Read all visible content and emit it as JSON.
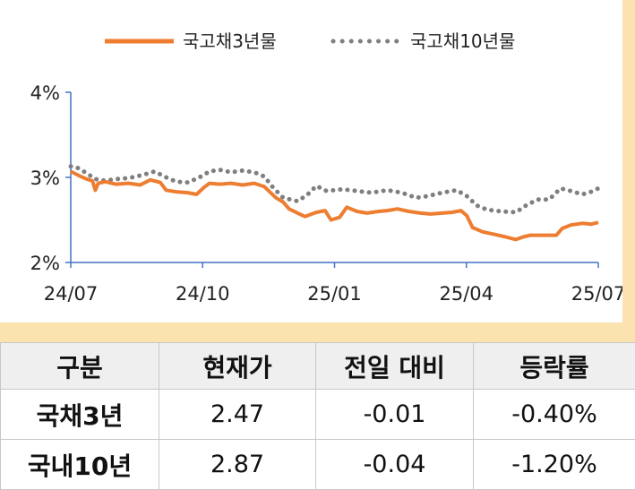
{
  "chart_data": {
    "type": "line",
    "legend": [
      "국고채3년물",
      "국고채10년물"
    ],
    "legend_position": "top",
    "x_ticks": [
      "24/07",
      "24/10",
      "25/01",
      "25/04",
      "25/07"
    ],
    "y_ticks": [
      "2%",
      "3%",
      "4%"
    ],
    "ylim": [
      2,
      4
    ],
    "x_range": [
      "2024-07-01",
      "2025-07-01"
    ],
    "series": [
      {
        "name": "국고채3년물",
        "color": "#ed7d31",
        "style": "solid",
        "points": [
          [
            "2024-07-01",
            3.07
          ],
          [
            "2024-07-08",
            3.01
          ],
          [
            "2024-07-12",
            2.98
          ],
          [
            "2024-07-16",
            2.96
          ],
          [
            "2024-07-18",
            2.85
          ],
          [
            "2024-07-20",
            2.93
          ],
          [
            "2024-07-25",
            2.95
          ],
          [
            "2024-08-01",
            2.92
          ],
          [
            "2024-08-10",
            2.93
          ],
          [
            "2024-08-18",
            2.91
          ],
          [
            "2024-08-25",
            2.97
          ],
          [
            "2024-09-01",
            2.94
          ],
          [
            "2024-09-05",
            2.85
          ],
          [
            "2024-09-12",
            2.83
          ],
          [
            "2024-09-20",
            2.82
          ],
          [
            "2024-09-26",
            2.8
          ],
          [
            "2024-10-01",
            2.88
          ],
          [
            "2024-10-05",
            2.93
          ],
          [
            "2024-10-12",
            2.92
          ],
          [
            "2024-10-20",
            2.93
          ],
          [
            "2024-10-28",
            2.91
          ],
          [
            "2024-11-05",
            2.93
          ],
          [
            "2024-11-12",
            2.89
          ],
          [
            "2024-11-20",
            2.76
          ],
          [
            "2024-11-25",
            2.71
          ],
          [
            "2024-11-29",
            2.63
          ],
          [
            "2024-12-05",
            2.58
          ],
          [
            "2024-12-10",
            2.54
          ],
          [
            "2024-12-18",
            2.59
          ],
          [
            "2024-12-24",
            2.61
          ],
          [
            "2024-12-28",
            2.5
          ],
          [
            "2025-01-03",
            2.53
          ],
          [
            "2025-01-08",
            2.65
          ],
          [
            "2025-01-15",
            2.6
          ],
          [
            "2025-01-22",
            2.58
          ],
          [
            "2025-01-30",
            2.6
          ],
          [
            "2025-02-05",
            2.61
          ],
          [
            "2025-02-12",
            2.63
          ],
          [
            "2025-02-20",
            2.6
          ],
          [
            "2025-02-28",
            2.58
          ],
          [
            "2025-03-07",
            2.57
          ],
          [
            "2025-03-15",
            2.58
          ],
          [
            "2025-03-22",
            2.59
          ],
          [
            "2025-03-28",
            2.61
          ],
          [
            "2025-04-01",
            2.55
          ],
          [
            "2025-04-05",
            2.41
          ],
          [
            "2025-04-12",
            2.36
          ],
          [
            "2025-04-20",
            2.33
          ],
          [
            "2025-04-28",
            2.3
          ],
          [
            "2025-05-05",
            2.27
          ],
          [
            "2025-05-10",
            2.3
          ],
          [
            "2025-05-15",
            2.32
          ],
          [
            "2025-05-25",
            2.32
          ],
          [
            "2025-06-02",
            2.32
          ],
          [
            "2025-06-06",
            2.4
          ],
          [
            "2025-06-12",
            2.44
          ],
          [
            "2025-06-20",
            2.46
          ],
          [
            "2025-06-26",
            2.45
          ],
          [
            "2025-07-01",
            2.47
          ]
        ]
      },
      {
        "name": "국고채10년물",
        "color": "#7f7f7f",
        "style": "dotted",
        "points": [
          [
            "2024-07-01",
            3.13
          ],
          [
            "2024-07-06",
            3.11
          ],
          [
            "2024-07-12",
            3.05
          ],
          [
            "2024-07-18",
            2.98
          ],
          [
            "2024-07-25",
            2.96
          ],
          [
            "2024-08-01",
            2.98
          ],
          [
            "2024-08-10",
            2.99
          ],
          [
            "2024-08-20",
            3.03
          ],
          [
            "2024-08-28",
            3.07
          ],
          [
            "2024-09-05",
            3.0
          ],
          [
            "2024-09-12",
            2.95
          ],
          [
            "2024-09-20",
            2.94
          ],
          [
            "2024-09-28",
            3.0
          ],
          [
            "2024-10-05",
            3.07
          ],
          [
            "2024-10-12",
            3.09
          ],
          [
            "2024-10-20",
            3.06
          ],
          [
            "2024-10-28",
            3.08
          ],
          [
            "2024-11-05",
            3.06
          ],
          [
            "2024-11-12",
            3.01
          ],
          [
            "2024-11-18",
            2.88
          ],
          [
            "2024-11-25",
            2.76
          ],
          [
            "2024-12-05",
            2.72
          ],
          [
            "2024-12-12",
            2.8
          ],
          [
            "2024-12-18",
            2.9
          ],
          [
            "2024-12-25",
            2.84
          ],
          [
            "2025-01-05",
            2.86
          ],
          [
            "2025-01-15",
            2.84
          ],
          [
            "2025-01-25",
            2.82
          ],
          [
            "2025-02-05",
            2.85
          ],
          [
            "2025-02-15",
            2.82
          ],
          [
            "2025-02-25",
            2.76
          ],
          [
            "2025-03-05",
            2.78
          ],
          [
            "2025-03-15",
            2.82
          ],
          [
            "2025-03-25",
            2.85
          ],
          [
            "2025-04-01",
            2.78
          ],
          [
            "2025-04-08",
            2.67
          ],
          [
            "2025-04-15",
            2.62
          ],
          [
            "2025-04-25",
            2.6
          ],
          [
            "2025-05-05",
            2.59
          ],
          [
            "2025-05-12",
            2.67
          ],
          [
            "2025-05-20",
            2.74
          ],
          [
            "2025-05-28",
            2.74
          ],
          [
            "2025-06-05",
            2.87
          ],
          [
            "2025-06-12",
            2.84
          ],
          [
            "2025-06-20",
            2.8
          ],
          [
            "2025-06-26",
            2.83
          ],
          [
            "2025-07-01",
            2.87
          ]
        ]
      }
    ]
  },
  "table": {
    "headers": [
      "구분",
      "현재가",
      "전일 대비",
      "등락률"
    ],
    "rows": [
      {
        "label": "국채3년",
        "price": "2.47",
        "change": "-0.01",
        "rate": "-0.40%"
      },
      {
        "label": "국내10년",
        "price": "2.87",
        "change": "-0.04",
        "rate": "-1.20%"
      }
    ]
  }
}
